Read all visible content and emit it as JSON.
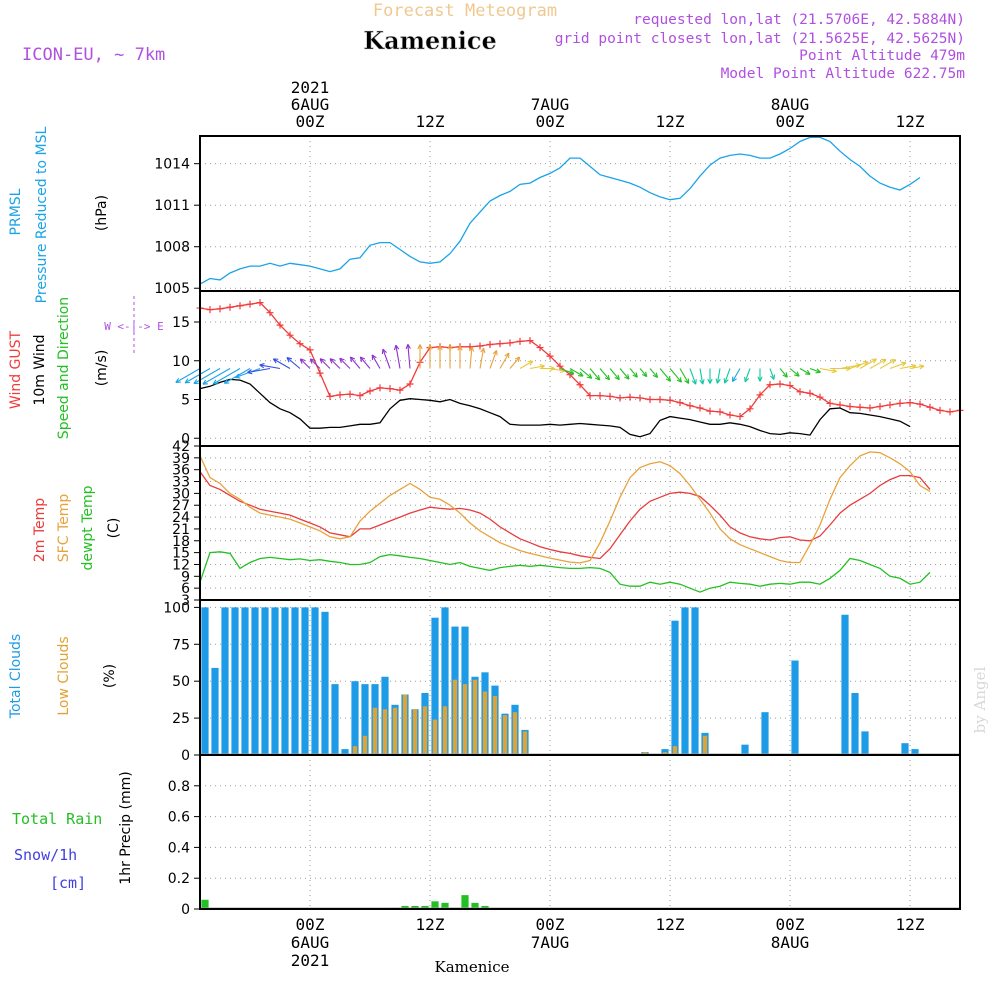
{
  "header": {
    "super_title": "Forecast Meteogram",
    "location": "Kamenice",
    "model": "ICON-EU, ~ 7km",
    "requested": "requested lon,lat (21.5706E, 42.5884N)",
    "grid_point": "grid point closest lon,lat (21.5625E, 42.5625N)",
    "point_alt": "Point Altitude 479m",
    "model_alt": "Model Point Altitude 622.75m",
    "watermark": "by Angel"
  },
  "time_axis": {
    "top": [
      {
        "lines": [
          "2021",
          "6AUG",
          "00Z"
        ],
        "t": 0
      },
      {
        "lines": [
          "12Z"
        ],
        "t": 12
      },
      {
        "lines": [
          "7AUG",
          "00Z"
        ],
        "t": 24
      },
      {
        "lines": [
          "12Z"
        ],
        "t": 36
      },
      {
        "lines": [
          "8AUG",
          "00Z"
        ],
        "t": 48
      },
      {
        "lines": [
          "12Z"
        ],
        "t": 60
      }
    ],
    "bottom": [
      {
        "lines": [
          "00Z",
          "6AUG",
          "2021"
        ],
        "t": 0
      },
      {
        "lines": [
          "12Z"
        ],
        "t": 12
      },
      {
        "lines": [
          "00Z",
          "7AUG"
        ],
        "t": 24
      },
      {
        "lines": [
          "12Z"
        ],
        "t": 36
      },
      {
        "lines": [
          "00Z",
          "8AUG"
        ],
        "t": 48
      },
      {
        "lines": [
          "12Z"
        ],
        "t": 60
      }
    ],
    "bottom_caption": "Kamenice",
    "range_hours": [
      -11,
      65
    ],
    "step_hours": 1
  },
  "chart_data": [
    {
      "type": "line",
      "title": "PRMSL Pressure Reduced to MSL",
      "ylabel_lines": [
        "PRMSL",
        "Pressure Reduced to MSL"
      ],
      "unit": "(hPa)",
      "ylim": [
        1004.8,
        1016.0
      ],
      "yticks": [
        1005,
        1008,
        1011,
        1014
      ],
      "series": [
        {
          "name": "PRMSL",
          "color": "#1aa3e8",
          "start_hour": -11,
          "values": [
            1005.3,
            1005.7,
            1005.6,
            1006.1,
            1006.4,
            1006.6,
            1006.6,
            1006.8,
            1006.6,
            1006.8,
            1006.7,
            1006.6,
            1006.4,
            1006.2,
            1006.4,
            1007.1,
            1007.2,
            1008.1,
            1008.3,
            1008.3,
            1007.8,
            1007.3,
            1006.9,
            1006.8,
            1006.9,
            1007.5,
            1008.4,
            1009.7,
            1010.5,
            1011.3,
            1011.7,
            1012.0,
            1012.5,
            1012.6,
            1013.0,
            1013.3,
            1013.7,
            1014.4,
            1014.4,
            1013.8,
            1013.2,
            1013.0,
            1012.8,
            1012.6,
            1012.3,
            1011.9,
            1011.6,
            1011.4,
            1011.5,
            1012.2,
            1013.1,
            1013.9,
            1014.4,
            1014.6,
            1014.7,
            1014.6,
            1014.4,
            1014.4,
            1014.7,
            1015.1,
            1015.6,
            1015.9,
            1015.9,
            1015.6,
            1014.9,
            1014.3,
            1013.8,
            1013.1,
            1012.6,
            1012.3,
            1012.1,
            1012.5,
            1013.0
          ]
        }
      ]
    },
    {
      "type": "line",
      "title": "Wind GUST / 10m Wind Speed and Direction",
      "ylabel_lines": [
        "Wind GUST",
        "10m Wind",
        "Speed and Direction"
      ],
      "unit": "(m/s)",
      "compass": "W <-|-> E",
      "ylim": [
        -1,
        19
      ],
      "yticks": [
        0,
        5,
        10,
        15
      ],
      "series": [
        {
          "name": "Wind GUST",
          "color": "#f03c3c",
          "start_hour": -11,
          "values": [
            16.8,
            16.6,
            16.7,
            16.9,
            17.1,
            17.3,
            17.5,
            16.2,
            14.6,
            13.3,
            12.2,
            11.4,
            8.4,
            5.4,
            5.6,
            5.7,
            5.5,
            6.1,
            6.5,
            6.4,
            6.2,
            7.0,
            9.8,
            11.7,
            11.8,
            11.7,
            11.8,
            11.8,
            11.9,
            12.1,
            12.2,
            12.3,
            12.5,
            12.6,
            11.7,
            10.6,
            9.3,
            8.2,
            6.9,
            5.5,
            5.5,
            5.4,
            5.2,
            5.3,
            5.2,
            5.0,
            5.0,
            4.9,
            4.6,
            4.2,
            3.9,
            3.5,
            3.4,
            3.0,
            2.8,
            3.8,
            5.6,
            6.9,
            7.0,
            6.8,
            6.0,
            5.8,
            5.3,
            4.5,
            4.3,
            4.1,
            4.0,
            3.9,
            4.1,
            4.3,
            4.5,
            4.6,
            4.4,
            4.0,
            3.6,
            3.4,
            3.6
          ]
        },
        {
          "name": "10m Wind",
          "color": "#000000",
          "start_hour": -11,
          "values": [
            6.4,
            6.7,
            7.2,
            7.6,
            7.5,
            7.0,
            5.8,
            4.6,
            3.8,
            3.3,
            2.5,
            1.3,
            1.3,
            1.4,
            1.4,
            1.6,
            1.8,
            1.8,
            2.0,
            3.8,
            4.9,
            5.1,
            5.0,
            4.9,
            4.7,
            5.0,
            4.5,
            4.2,
            3.8,
            3.3,
            2.8,
            1.8,
            1.7,
            1.7,
            1.7,
            1.8,
            1.7,
            1.8,
            1.9,
            1.8,
            1.7,
            1.6,
            1.4,
            0.5,
            0.2,
            0.6,
            2.3,
            2.8,
            2.6,
            2.4,
            2.1,
            1.8,
            1.8,
            2.0,
            1.8,
            1.5,
            1.0,
            0.6,
            0.5,
            0.7,
            0.6,
            0.4,
            2.4,
            3.8,
            3.9,
            3.3,
            3.2,
            3.0,
            2.8,
            2.5,
            2.2,
            1.5
          ]
        },
        {
          "name": "Direction arrows",
          "start_hour": -11,
          "dir_deg": [
            240,
            240,
            240,
            240,
            240,
            240,
            250,
            260,
            280,
            300,
            310,
            315,
            315,
            315,
            315,
            315,
            320,
            320,
            330,
            340,
            350,
            355,
            360,
            0,
            0,
            0,
            0,
            5,
            10,
            20,
            30,
            40,
            60,
            80,
            90,
            100,
            110,
            120,
            130,
            140,
            140,
            140,
            140,
            140,
            140,
            140,
            140,
            140,
            150,
            160,
            170,
            180,
            190,
            200,
            210,
            200,
            180,
            160,
            140,
            130,
            120,
            110,
            100,
            90,
            80,
            70,
            60,
            60,
            60,
            70,
            80,
            80
          ]
        }
      ]
    },
    {
      "type": "line",
      "title": "2m Temp / SFC Temp / dewpt Temp",
      "ylabel_lines": [
        "2m Temp",
        "SFC Temp",
        "dewpt Temp"
      ],
      "unit": "(C)",
      "ylim": [
        3,
        42
      ],
      "yticks": [
        3,
        6,
        9,
        12,
        15,
        18,
        21,
        24,
        27,
        30,
        33,
        36,
        39,
        42
      ],
      "series": [
        {
          "name": "2m Temp",
          "color": "#e83c3c",
          "start_hour": -11,
          "values": [
            35.5,
            32.0,
            31.0,
            29.5,
            28.0,
            27.0,
            26.0,
            25.5,
            25.0,
            24.5,
            23.5,
            22.5,
            21.5,
            20.0,
            19.5,
            19.0,
            21.0,
            21.0,
            22.0,
            23.0,
            24.0,
            25.0,
            25.8,
            26.5,
            26.2,
            26.0,
            26.2,
            25.8,
            25.0,
            23.5,
            21.5,
            20.0,
            18.5,
            17.5,
            16.5,
            15.8,
            15.2,
            14.8,
            14.2,
            13.8,
            13.5,
            16.0,
            19.5,
            23.0,
            26.0,
            28.0,
            29.0,
            30.0,
            30.3,
            30.0,
            29.2,
            27.0,
            24.5,
            21.5,
            20.0,
            19.0,
            18.5,
            18.2,
            18.8,
            19.0,
            18.2,
            18.0,
            19.2,
            22.0,
            25.0,
            27.0,
            28.5,
            30.0,
            32.0,
            33.5,
            34.5,
            34.5,
            34.0,
            31.0
          ]
        },
        {
          "name": "SFC Temp",
          "color": "#e8a23c",
          "start_hour": -11,
          "values": [
            39.5,
            34.0,
            32.5,
            30.0,
            28.5,
            26.5,
            25.0,
            24.5,
            24.0,
            23.5,
            22.5,
            21.5,
            20.5,
            19.0,
            18.5,
            19.0,
            23.0,
            25.5,
            27.5,
            29.5,
            31.0,
            32.5,
            31.0,
            29.0,
            28.5,
            27.0,
            25.0,
            22.5,
            20.5,
            19.0,
            17.5,
            16.5,
            15.5,
            14.8,
            14.2,
            13.6,
            13.1,
            12.6,
            12.4,
            13.0,
            17.5,
            23.0,
            29.0,
            34.0,
            36.5,
            37.5,
            38.0,
            37.0,
            35.0,
            32.0,
            28.5,
            25.0,
            21.0,
            18.5,
            17.0,
            16.0,
            15.0,
            14.0,
            13.0,
            12.5,
            12.5,
            17.0,
            22.0,
            28.5,
            34.0,
            37.0,
            39.5,
            40.5,
            40.3,
            39.0,
            37.5,
            35.5,
            32.0,
            30.5
          ]
        },
        {
          "name": "dewpt Temp",
          "color": "#22c022",
          "start_hour": -11,
          "values": [
            7.5,
            15.0,
            15.2,
            14.8,
            11.0,
            12.5,
            13.5,
            13.8,
            13.5,
            13.2,
            13.4,
            13.0,
            13.2,
            12.8,
            12.5,
            12.0,
            12.0,
            12.5,
            14.0,
            14.5,
            14.2,
            13.8,
            13.5,
            13.0,
            12.5,
            12.0,
            12.5,
            11.5,
            11.0,
            10.5,
            11.2,
            11.5,
            11.8,
            11.5,
            11.8,
            11.5,
            11.2,
            11.0,
            11.0,
            11.2,
            11.0,
            10.0,
            7.0,
            6.5,
            6.5,
            7.5,
            7.0,
            7.5,
            7.0,
            6.0,
            5.0,
            6.0,
            6.5,
            7.5,
            7.2,
            7.0,
            6.5,
            7.0,
            7.2,
            7.0,
            7.5,
            7.5,
            7.0,
            8.5,
            10.5,
            13.5,
            13.0,
            12.0,
            11.0,
            9.0,
            8.5,
            7.0,
            7.5,
            10.0
          ]
        }
      ]
    },
    {
      "type": "bar",
      "title": "Total Clouds / Low Clouds",
      "ylabel_lines": [
        "Total Clouds",
        "Low Clouds"
      ],
      "unit": "(%)",
      "ylim": [
        0,
        105
      ],
      "yticks": [
        0,
        25,
        50,
        75,
        100
      ],
      "start_hour": -11,
      "series": [
        {
          "name": "Total Clouds",
          "color": "#1e9be6",
          "values": [
            100,
            59,
            100,
            100,
            100,
            100,
            100,
            100,
            100,
            100,
            100,
            100,
            97,
            48,
            4,
            50,
            48,
            48,
            53,
            34,
            41,
            31,
            42,
            93,
            100,
            87,
            87,
            53,
            56,
            47,
            28,
            34,
            17,
            0,
            0,
            0,
            0,
            0,
            0,
            0,
            0,
            0,
            0,
            0,
            2,
            0,
            4,
            91,
            100,
            100,
            15,
            0,
            0,
            0,
            7,
            0,
            29,
            0,
            0,
            64,
            0,
            0,
            0,
            0,
            95,
            42,
            16,
            0,
            0,
            0,
            8,
            4,
            0,
            0
          ]
        },
        {
          "name": "Low Clouds",
          "color": "#e0a232",
          "values": [
            0,
            0,
            0,
            0,
            0,
            0,
            0,
            0,
            0,
            0,
            0,
            0,
            0,
            0,
            0,
            6,
            13,
            32,
            31,
            32,
            41,
            31,
            33,
            24,
            33,
            51,
            48,
            51,
            43,
            40,
            27,
            29,
            16,
            0,
            0,
            0,
            0,
            0,
            0,
            0,
            0,
            0,
            0,
            0,
            2,
            0,
            2,
            6,
            0,
            0,
            13,
            0,
            0,
            0,
            0,
            0,
            0,
            0,
            0,
            0,
            0,
            0,
            0,
            0,
            0,
            0,
            0,
            0,
            0,
            0,
            0,
            0,
            0,
            0
          ]
        }
      ]
    },
    {
      "type": "bar",
      "title": "1hr Precip",
      "ylabel_lines": [
        "Total Rain",
        "Snow/1h",
        "[cm]"
      ],
      "unit": "1hr Precip (mm)",
      "ylim": [
        0,
        1.0
      ],
      "yticks": [
        0,
        0.2,
        0.4,
        0.6,
        0.8
      ],
      "ytick_labels": [
        "0",
        "0.2",
        "0.4",
        "0.6",
        "0.8"
      ],
      "start_hour": -11,
      "series": [
        {
          "name": "Total Rain",
          "color": "#22c022",
          "values": [
            0.06,
            0,
            0,
            0,
            0,
            0,
            0,
            0,
            0,
            0,
            0,
            0,
            0,
            0,
            0,
            0,
            0,
            0,
            0,
            0.01,
            0.02,
            0.02,
            0.02,
            0.05,
            0.04,
            0.01,
            0.09,
            0.04,
            0.02,
            0,
            0,
            0,
            0,
            0,
            0,
            0,
            0,
            0,
            0,
            0,
            0,
            0,
            0,
            0,
            0,
            0,
            0,
            0,
            0,
            0,
            0,
            0,
            0,
            0,
            0,
            0,
            0,
            0,
            0,
            0,
            0,
            0,
            0,
            0,
            0,
            0,
            0,
            0,
            0,
            0,
            0,
            0,
            0,
            0
          ]
        }
      ]
    }
  ]
}
